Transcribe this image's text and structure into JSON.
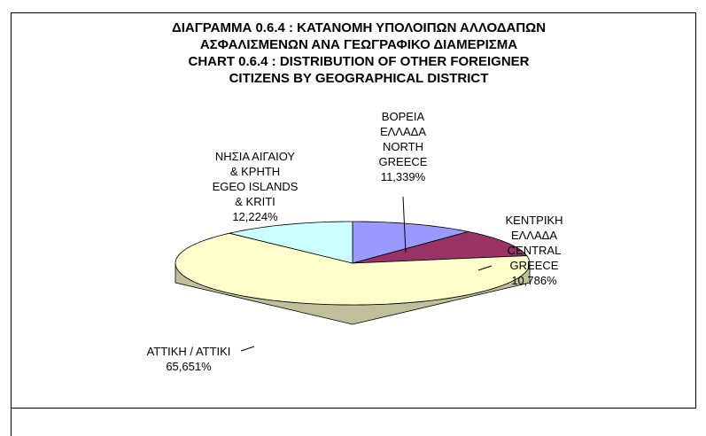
{
  "chart_data": {
    "type": "pie",
    "title": "ΔΙΑΓΡΑΜΜΑ 0.6.4 : ΚΑΤΑΝΟΜΗ ΥΠΟΛΟΙΠΩΝ ΑΛΛΟΔΑΠΩΝ\nΑΣΦΑΛΙΣΜΕΝΩΝ ΑΝΑ ΓΕΩΓΡΑΦΙΚΟ ΔΙΑΜΕΡΙΣΜΑ",
    "subtitle": "CHART 0.6.4 : DISTRIBUTION OF OTHER FOREIGNER\nCITIZENS BY GEOGRAPHICAL DISTRICT",
    "categories": [
      "ΒΟΡΕΙΑ\nΕΛΛΑΔΑ\nNORTH\nGREECE",
      "ΚΕΝΤΡΙΚΗ\nΕΛΛΑΔΑ\nCENTRAL\nGREECE",
      "ΑΤΤΙΚΗ / ΑΤΤΙΚΙ",
      "ΝΗΣΙΑ ΑΙΓΑΙΟΥ\n& ΚΡΗΤΗ\nEGEO ISLANDS\n& KRITI"
    ],
    "values": [
      11.339,
      10.786,
      65.651,
      12.224
    ],
    "value_labels": [
      "11,339%",
      "10,786%",
      "65,651%",
      "12,224%"
    ],
    "colors": [
      "#9999ff",
      "#993366",
      "#ffffcc",
      "#ccffff"
    ]
  }
}
